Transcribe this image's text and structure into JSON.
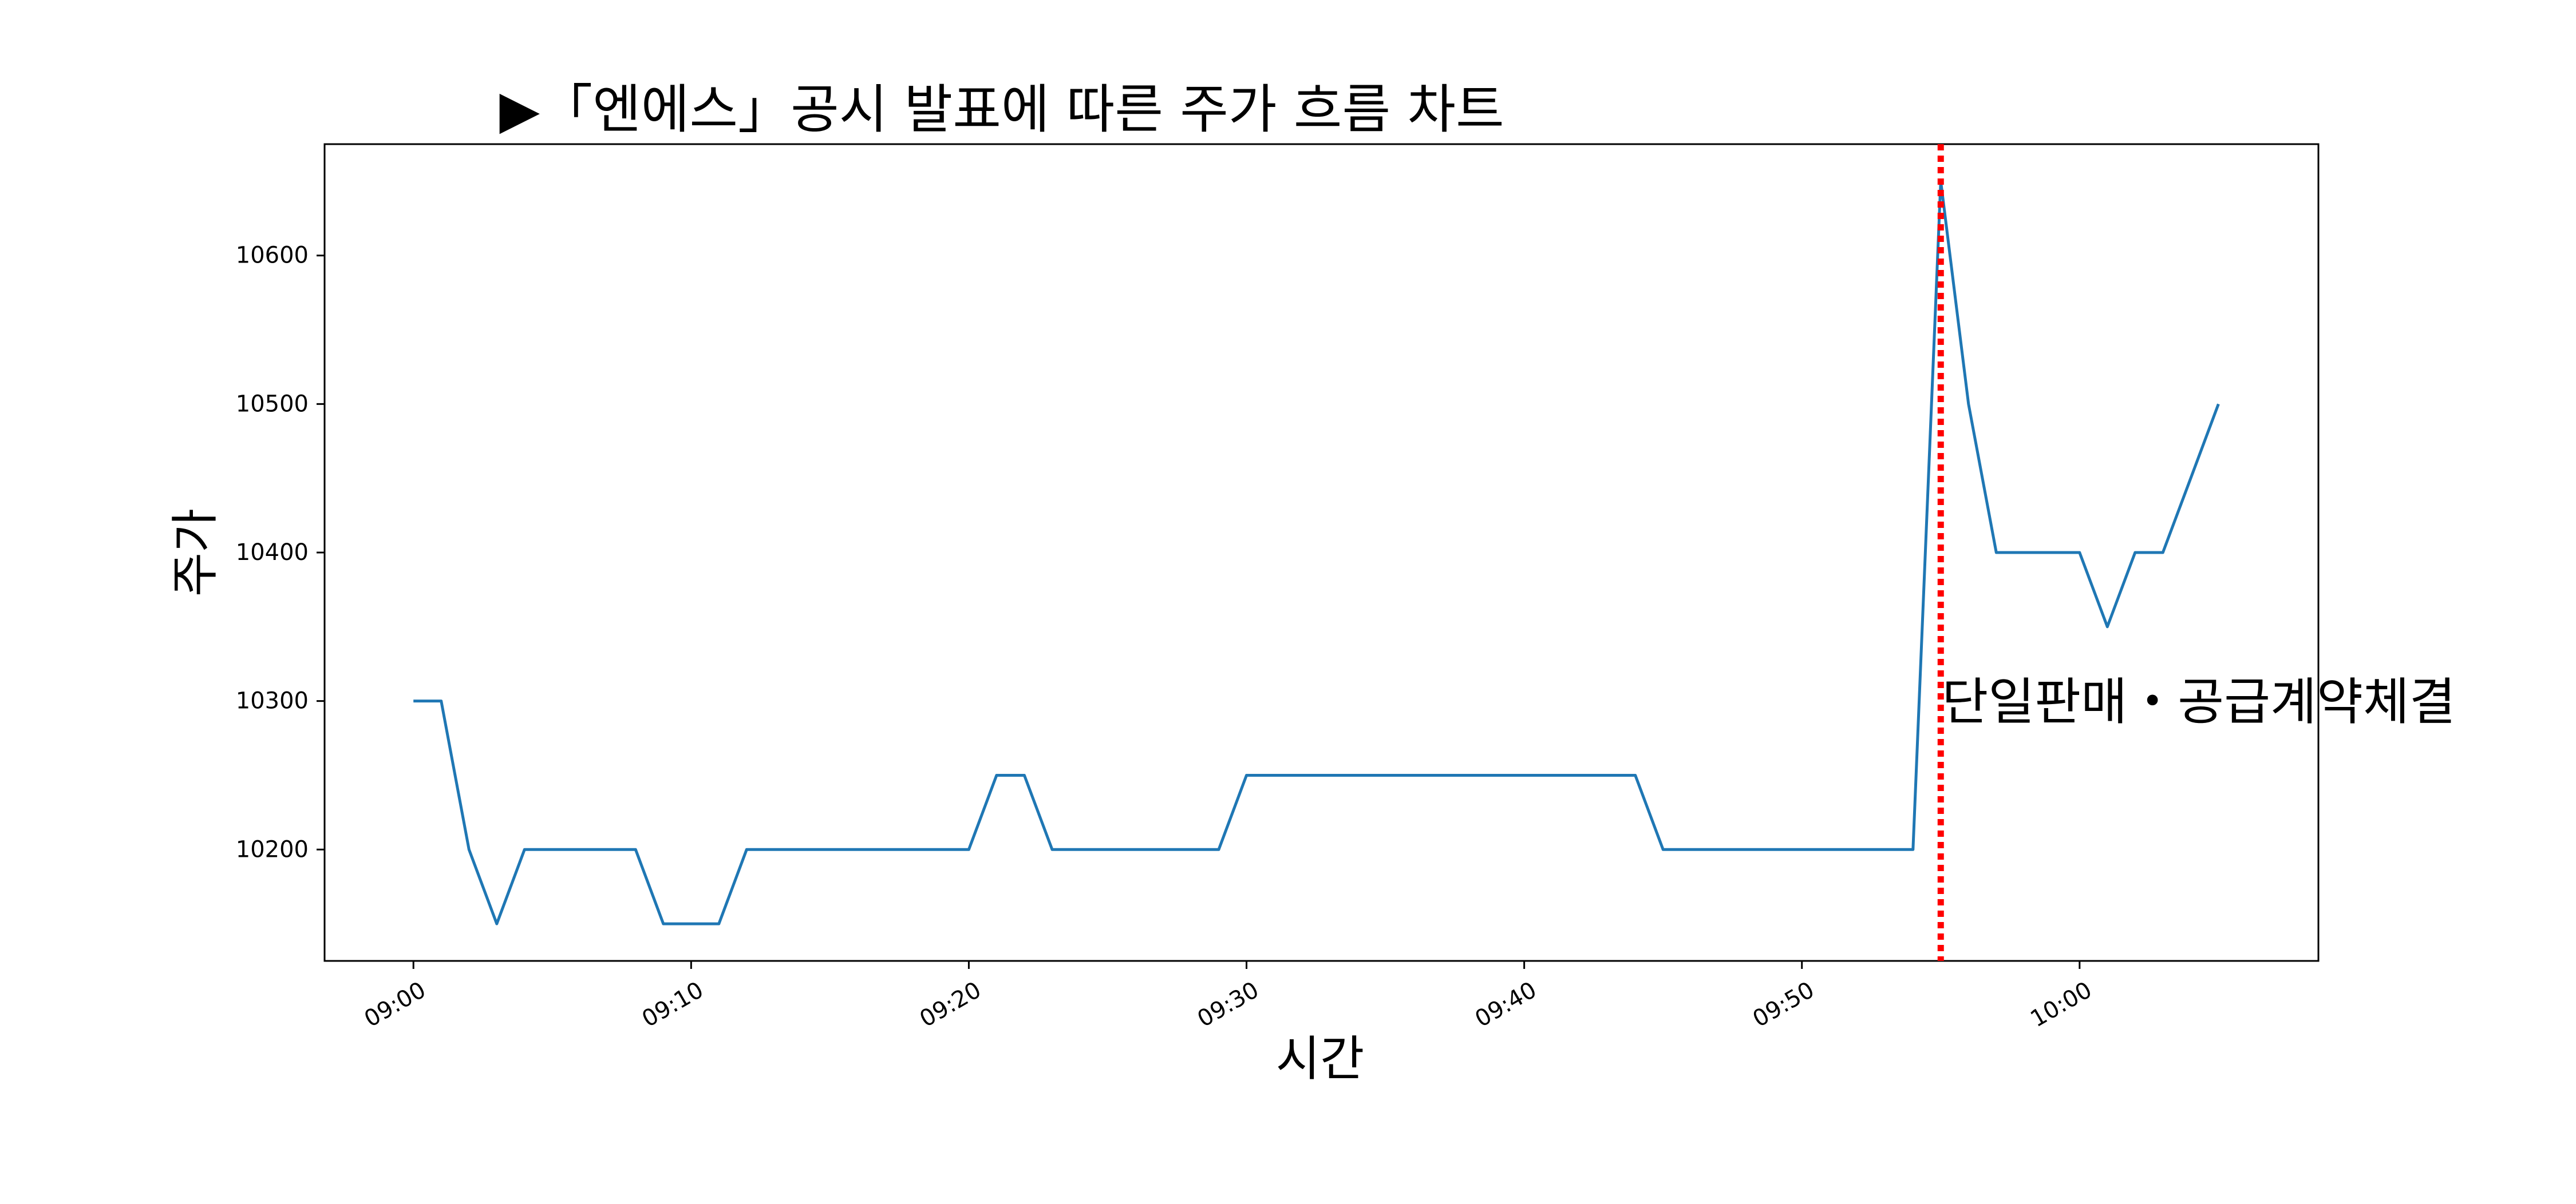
{
  "chart_data": {
    "type": "line",
    "title": "▶「엔에스」공시 발표에 따른 주가 흐름 차트",
    "xlabel": "시간",
    "ylabel": "주가",
    "xlim": [
      "08:56.8",
      "10:08.6"
    ],
    "ylim": [
      10125,
      10675
    ],
    "x_ticks": [
      "09:00",
      "09:10",
      "09:20",
      "09:30",
      "09:40",
      "09:50",
      "10:00"
    ],
    "y_ticks": [
      10200,
      10300,
      10400,
      10500,
      10600
    ],
    "grid": false,
    "series": [
      {
        "color": "#1f77b4",
        "x": [
          "09:00",
          "09:01",
          "09:02",
          "09:03",
          "09:04",
          "09:05",
          "09:06",
          "09:07",
          "09:08",
          "09:09",
          "09:10",
          "09:11",
          "09:12",
          "09:13",
          "09:14",
          "09:15",
          "09:16",
          "09:17",
          "09:18",
          "09:19",
          "09:20",
          "09:21",
          "09:22",
          "09:23",
          "09:24",
          "09:25",
          "09:26",
          "09:27",
          "09:28",
          "09:29",
          "09:30",
          "09:31",
          "09:32",
          "09:33",
          "09:34",
          "09:35",
          "09:36",
          "09:37",
          "09:38",
          "09:39",
          "09:40",
          "09:41",
          "09:42",
          "09:43",
          "09:44",
          "09:45",
          "09:46",
          "09:47",
          "09:48",
          "09:49",
          "09:50",
          "09:51",
          "09:52",
          "09:53",
          "09:54",
          "09:55",
          "09:56",
          "09:57",
          "09:58",
          "09:59",
          "10:00",
          "10:01",
          "10:02",
          "10:03",
          "10:04",
          "10:05"
        ],
        "values": [
          10300,
          10300,
          10200,
          10150,
          10200,
          10200,
          10200,
          10200,
          10200,
          10150,
          10150,
          10150,
          10200,
          10200,
          10200,
          10200,
          10200,
          10200,
          10200,
          10200,
          10200,
          10250,
          10250,
          10200,
          10200,
          10200,
          10200,
          10200,
          10200,
          10200,
          10250,
          10250,
          10250,
          10250,
          10250,
          10250,
          10250,
          10250,
          10250,
          10250,
          10250,
          10250,
          10250,
          10250,
          10250,
          10200,
          10200,
          10200,
          10200,
          10200,
          10200,
          10200,
          10200,
          10200,
          10200,
          10650,
          10500,
          10400,
          10400,
          10400,
          10400,
          10350,
          10400,
          10400,
          10450,
          10500
        ]
      }
    ],
    "vline": {
      "x": "09:55",
      "color": "#ff0000",
      "style": "dotted"
    },
    "annotation": {
      "text": "단일판매・공급계약체결",
      "x": "09:55",
      "y": 10300
    }
  }
}
